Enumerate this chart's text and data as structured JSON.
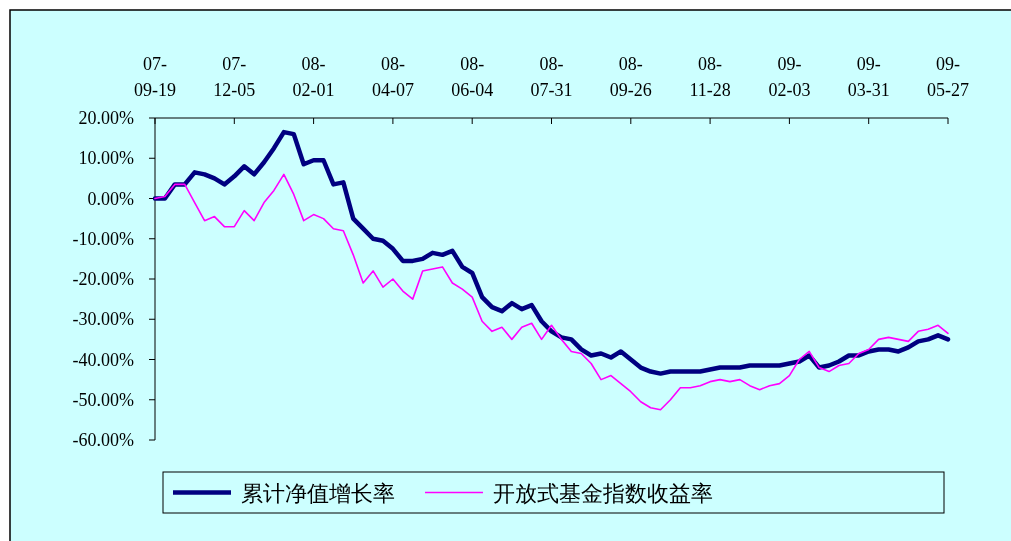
{
  "chart_data": {
    "type": "line",
    "ylim": [
      -60,
      20
    ],
    "categories": [
      "07-09-19",
      null,
      null,
      null,
      null,
      null,
      null,
      null,
      "07-12-05",
      null,
      null,
      null,
      null,
      null,
      null,
      null,
      "08-02-01",
      null,
      null,
      null,
      null,
      null,
      null,
      null,
      "08-04-07",
      null,
      null,
      null,
      null,
      null,
      null,
      null,
      "08-06-04",
      null,
      null,
      null,
      null,
      null,
      null,
      null,
      "08-07-31",
      null,
      null,
      null,
      null,
      null,
      null,
      null,
      "08-09-26",
      null,
      null,
      null,
      null,
      null,
      null,
      null,
      "08-11-28",
      null,
      null,
      null,
      null,
      null,
      null,
      null,
      "09-02-03",
      null,
      null,
      null,
      null,
      null,
      null,
      null,
      "09-03-31",
      null,
      null,
      null,
      null,
      null,
      null,
      null,
      "09-05-27"
    ],
    "yticks": [
      {
        "value": 20,
        "label": "20.00%"
      },
      {
        "value": 10,
        "label": "10.00%"
      },
      {
        "value": 0,
        "label": "0.00%"
      },
      {
        "value": -10,
        "label": "-10.00%"
      },
      {
        "value": -20,
        "label": "-20.00%"
      },
      {
        "value": -30,
        "label": "-30.00%"
      },
      {
        "value": -40,
        "label": "-40.00%"
      },
      {
        "value": -50,
        "label": "-50.00%"
      },
      {
        "value": -60,
        "label": "-60.00%"
      }
    ],
    "grid": false,
    "legend": "bottom",
    "line_style": "solid",
    "series": [
      {
        "name": "累计净值增长率",
        "color": "#000080",
        "values": [
          0,
          0,
          3.5,
          3.5,
          6.5,
          6,
          5,
          3.5,
          5.5,
          8,
          6,
          9,
          12.5,
          16.5,
          16,
          8.5,
          9.5,
          9.5,
          3.5,
          4,
          -5,
          -7.5,
          -10,
          -10.5,
          -12.5,
          -15.5,
          -15.5,
          -15,
          -13.5,
          -14,
          -13,
          -17,
          -18.5,
          -24.5,
          -27,
          -28,
          -26,
          -27.5,
          -26.5,
          -30.5,
          -33,
          -34.5,
          -35,
          -37.5,
          -39,
          -38.5,
          -39.5,
          -38,
          -40,
          -42,
          -43,
          -43.5,
          -43,
          -43,
          -43,
          -43,
          -42.5,
          -42,
          -42,
          -42,
          -41.5,
          -41.5,
          -41.5,
          -41.5,
          -41,
          -40.5,
          -39,
          -42,
          -41.5,
          -40.5,
          -39,
          -39,
          -38,
          -37.5,
          -37.5,
          -38,
          -37,
          -35.5,
          -35,
          -34,
          -35
        ]
      },
      {
        "name": "开放式基金指数收益率",
        "color": "#ff00ff",
        "values": [
          0,
          0.5,
          3.5,
          3.5,
          -1,
          -5.5,
          -4.5,
          -7,
          -7,
          -3,
          -5.5,
          -1,
          2,
          6,
          1,
          -5.5,
          -4,
          -5,
          -7.5,
          -8,
          -14,
          -21,
          -18,
          -22,
          -20,
          -23,
          -25,
          -18,
          -17.5,
          -17,
          -21,
          -22.5,
          -24.5,
          -30.5,
          -33,
          -32,
          -35,
          -32,
          -31,
          -35,
          -31.5,
          -35,
          -38,
          -38.5,
          -41,
          -45,
          -44,
          -46,
          -48,
          -50.5,
          -52,
          -52.5,
          -50,
          -47,
          -47,
          -46.5,
          -45.5,
          -45,
          -45.5,
          -45,
          -46.5,
          -47.5,
          -46.5,
          -46,
          -44,
          -40,
          -38,
          -42,
          -43,
          -41.5,
          -41,
          -38.5,
          -37.5,
          -35,
          -34.5,
          -35,
          -35.5,
          -33,
          -32.5,
          -31.5,
          -33.5
        ]
      }
    ]
  }
}
